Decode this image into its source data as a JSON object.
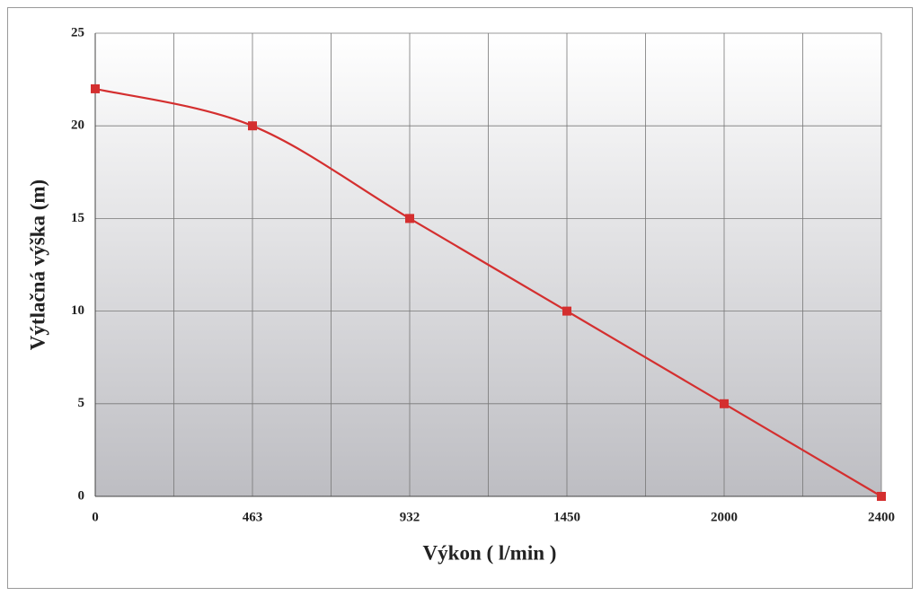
{
  "chart_data": {
    "type": "line",
    "x_label": "Výkon ( l/min )",
    "y_label": "Výtlačná výška (m)",
    "categories": [
      "0",
      "463",
      "932",
      "1450",
      "2000",
      "2400"
    ],
    "series": [
      {
        "name": "Výtlačná výška",
        "color": "#d42f2f",
        "values": [
          22,
          20,
          15,
          10,
          5,
          0
        ]
      }
    ],
    "ylim": [
      0,
      25
    ],
    "yticks": [
      0,
      5,
      10,
      15,
      20,
      25
    ],
    "grid": true,
    "smooth": true
  }
}
